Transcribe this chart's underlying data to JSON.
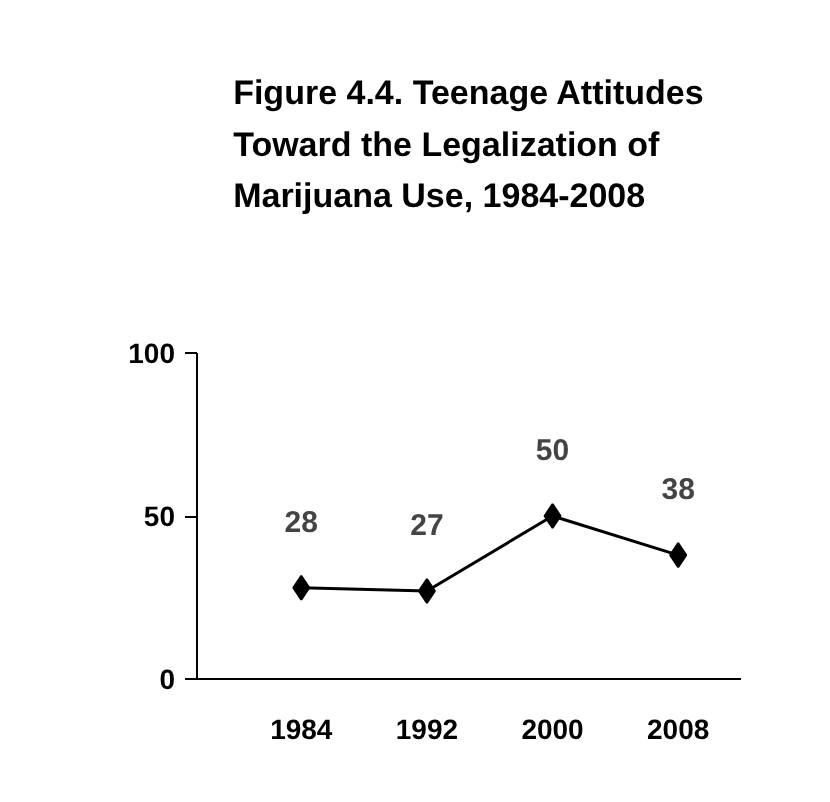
{
  "chart_data": {
    "type": "line",
    "title": "Figure 4.4. Teenage Attitudes Toward the Legalization of Marijuana Use, 1984-2008",
    "categories": [
      "1984",
      "1992",
      "2000",
      "2008"
    ],
    "series": [
      {
        "color": "#000000",
        "values": [
          28,
          27,
          50,
          38
        ]
      }
    ],
    "ylim": [
      0,
      100
    ],
    "yticks": [
      0,
      50,
      100
    ],
    "grid": false,
    "marker": "diamond",
    "line_style": "solid",
    "data_labels": true
  }
}
